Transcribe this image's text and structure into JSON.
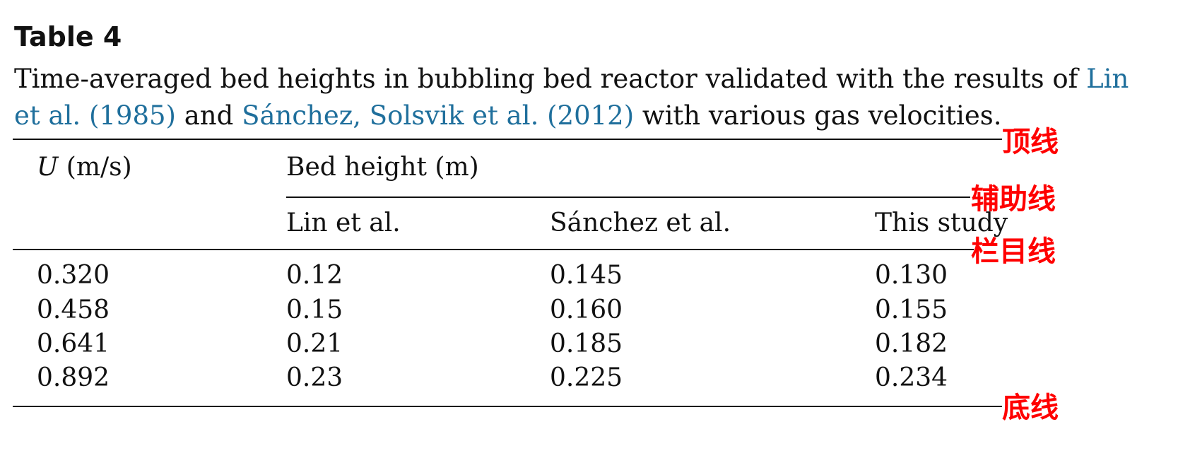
{
  "table": {
    "label": "Table 4",
    "caption": {
      "part1": "Time-averaged bed heights in bubbling bed reactor validated with the results of ",
      "ref1_a": "Lin",
      "ref1_b": "et al. (1985)",
      "part2": " and ",
      "ref2": "Sánchez, Solsvik et al. (2012)",
      "part3": " with various gas velocities."
    },
    "header": {
      "u_symbol": "U",
      "u_unit": " (m/s)",
      "group_label": "Bed height (m)",
      "sub_columns": [
        "Lin et al.",
        "Sánchez et al.",
        "This study"
      ]
    },
    "rows": [
      [
        "0.320",
        "0.12",
        "0.145",
        "0.130"
      ],
      [
        "0.458",
        "0.15",
        "0.160",
        "0.155"
      ],
      [
        "0.641",
        "0.21",
        "0.185",
        "0.182"
      ],
      [
        "0.892",
        "0.23",
        "0.225",
        "0.234"
      ]
    ]
  },
  "annotations": {
    "color": "#ff0000",
    "top_rule": "顶线",
    "aux_rule": "辅助线",
    "header_rule": "栏目线",
    "bottom_rule": "底线"
  }
}
